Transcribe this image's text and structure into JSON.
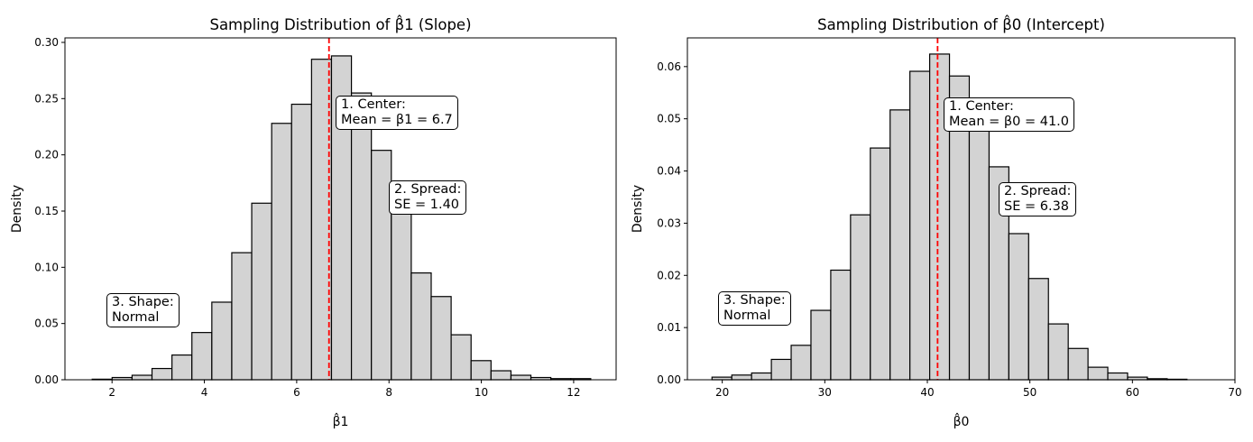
{
  "chart_data": [
    {
      "type": "bar",
      "title": "Sampling Distribution of β̂1 (Slope)",
      "xlabel": "β̂1",
      "ylabel": "Density",
      "xlim": [
        0.98,
        12.92
      ],
      "ylim": [
        0,
        0.304
      ],
      "xticks": [
        2,
        4,
        6,
        8,
        10,
        12
      ],
      "yticks": [
        0.0,
        0.05,
        0.1,
        0.15,
        0.2,
        0.25,
        0.3
      ],
      "ytick_labels": [
        "0.00",
        "0.05",
        "0.10",
        "0.15",
        "0.20",
        "0.25",
        "0.30"
      ],
      "bin_start": 1.57,
      "bin_width": 0.432,
      "values": [
        0.0005,
        0.002,
        0.004,
        0.01,
        0.022,
        0.042,
        0.069,
        0.113,
        0.157,
        0.228,
        0.245,
        0.285,
        0.288,
        0.255,
        0.204,
        0.152,
        0.095,
        0.074,
        0.04,
        0.017,
        0.008,
        0.004,
        0.002,
        0.001,
        0.001
      ],
      "mean_line": 6.7,
      "mean_line_color": "#ff0000",
      "bar_color": "#d3d3d3",
      "annotations": {
        "center_line1": "1. Center:",
        "center_line2": "Mean = β1 = 6.7",
        "spread_line1": "2. Spread:",
        "spread_line2": "SE = 1.40",
        "shape_line1": "3. Shape:",
        "shape_line2": "Normal"
      }
    },
    {
      "type": "bar",
      "title": "Sampling Distribution of β̂0 (Intercept)",
      "xlabel": "β̂0",
      "ylabel": "Density",
      "xlim": [
        16.6,
        70
      ],
      "ylim": [
        0,
        0.0655
      ],
      "xticks": [
        20,
        30,
        40,
        50,
        60,
        70
      ],
      "yticks": [
        0.0,
        0.01,
        0.02,
        0.03,
        0.04,
        0.05,
        0.06
      ],
      "ytick_labels": [
        "0.00",
        "0.01",
        "0.02",
        "0.03",
        "0.04",
        "0.05",
        "0.06"
      ],
      "bin_start": 19.0,
      "bin_width": 1.93,
      "values": [
        0.0005,
        0.0009,
        0.0013,
        0.0039,
        0.0066,
        0.0133,
        0.021,
        0.0316,
        0.0444,
        0.0517,
        0.0591,
        0.0624,
        0.0582,
        0.049,
        0.0408,
        0.028,
        0.0194,
        0.0107,
        0.006,
        0.0024,
        0.0013,
        0.0005,
        0.0002,
        0.0001
      ],
      "mean_line": 41.0,
      "mean_line_color": "#ff0000",
      "bar_color": "#d3d3d3",
      "annotations": {
        "center_line1": "1. Center:",
        "center_line2": "Mean = β0 = 41.0",
        "spread_line1": "2. Spread:",
        "spread_line2": "SE = 6.38",
        "shape_line1": "3. Shape:",
        "shape_line2": "Normal"
      }
    }
  ]
}
